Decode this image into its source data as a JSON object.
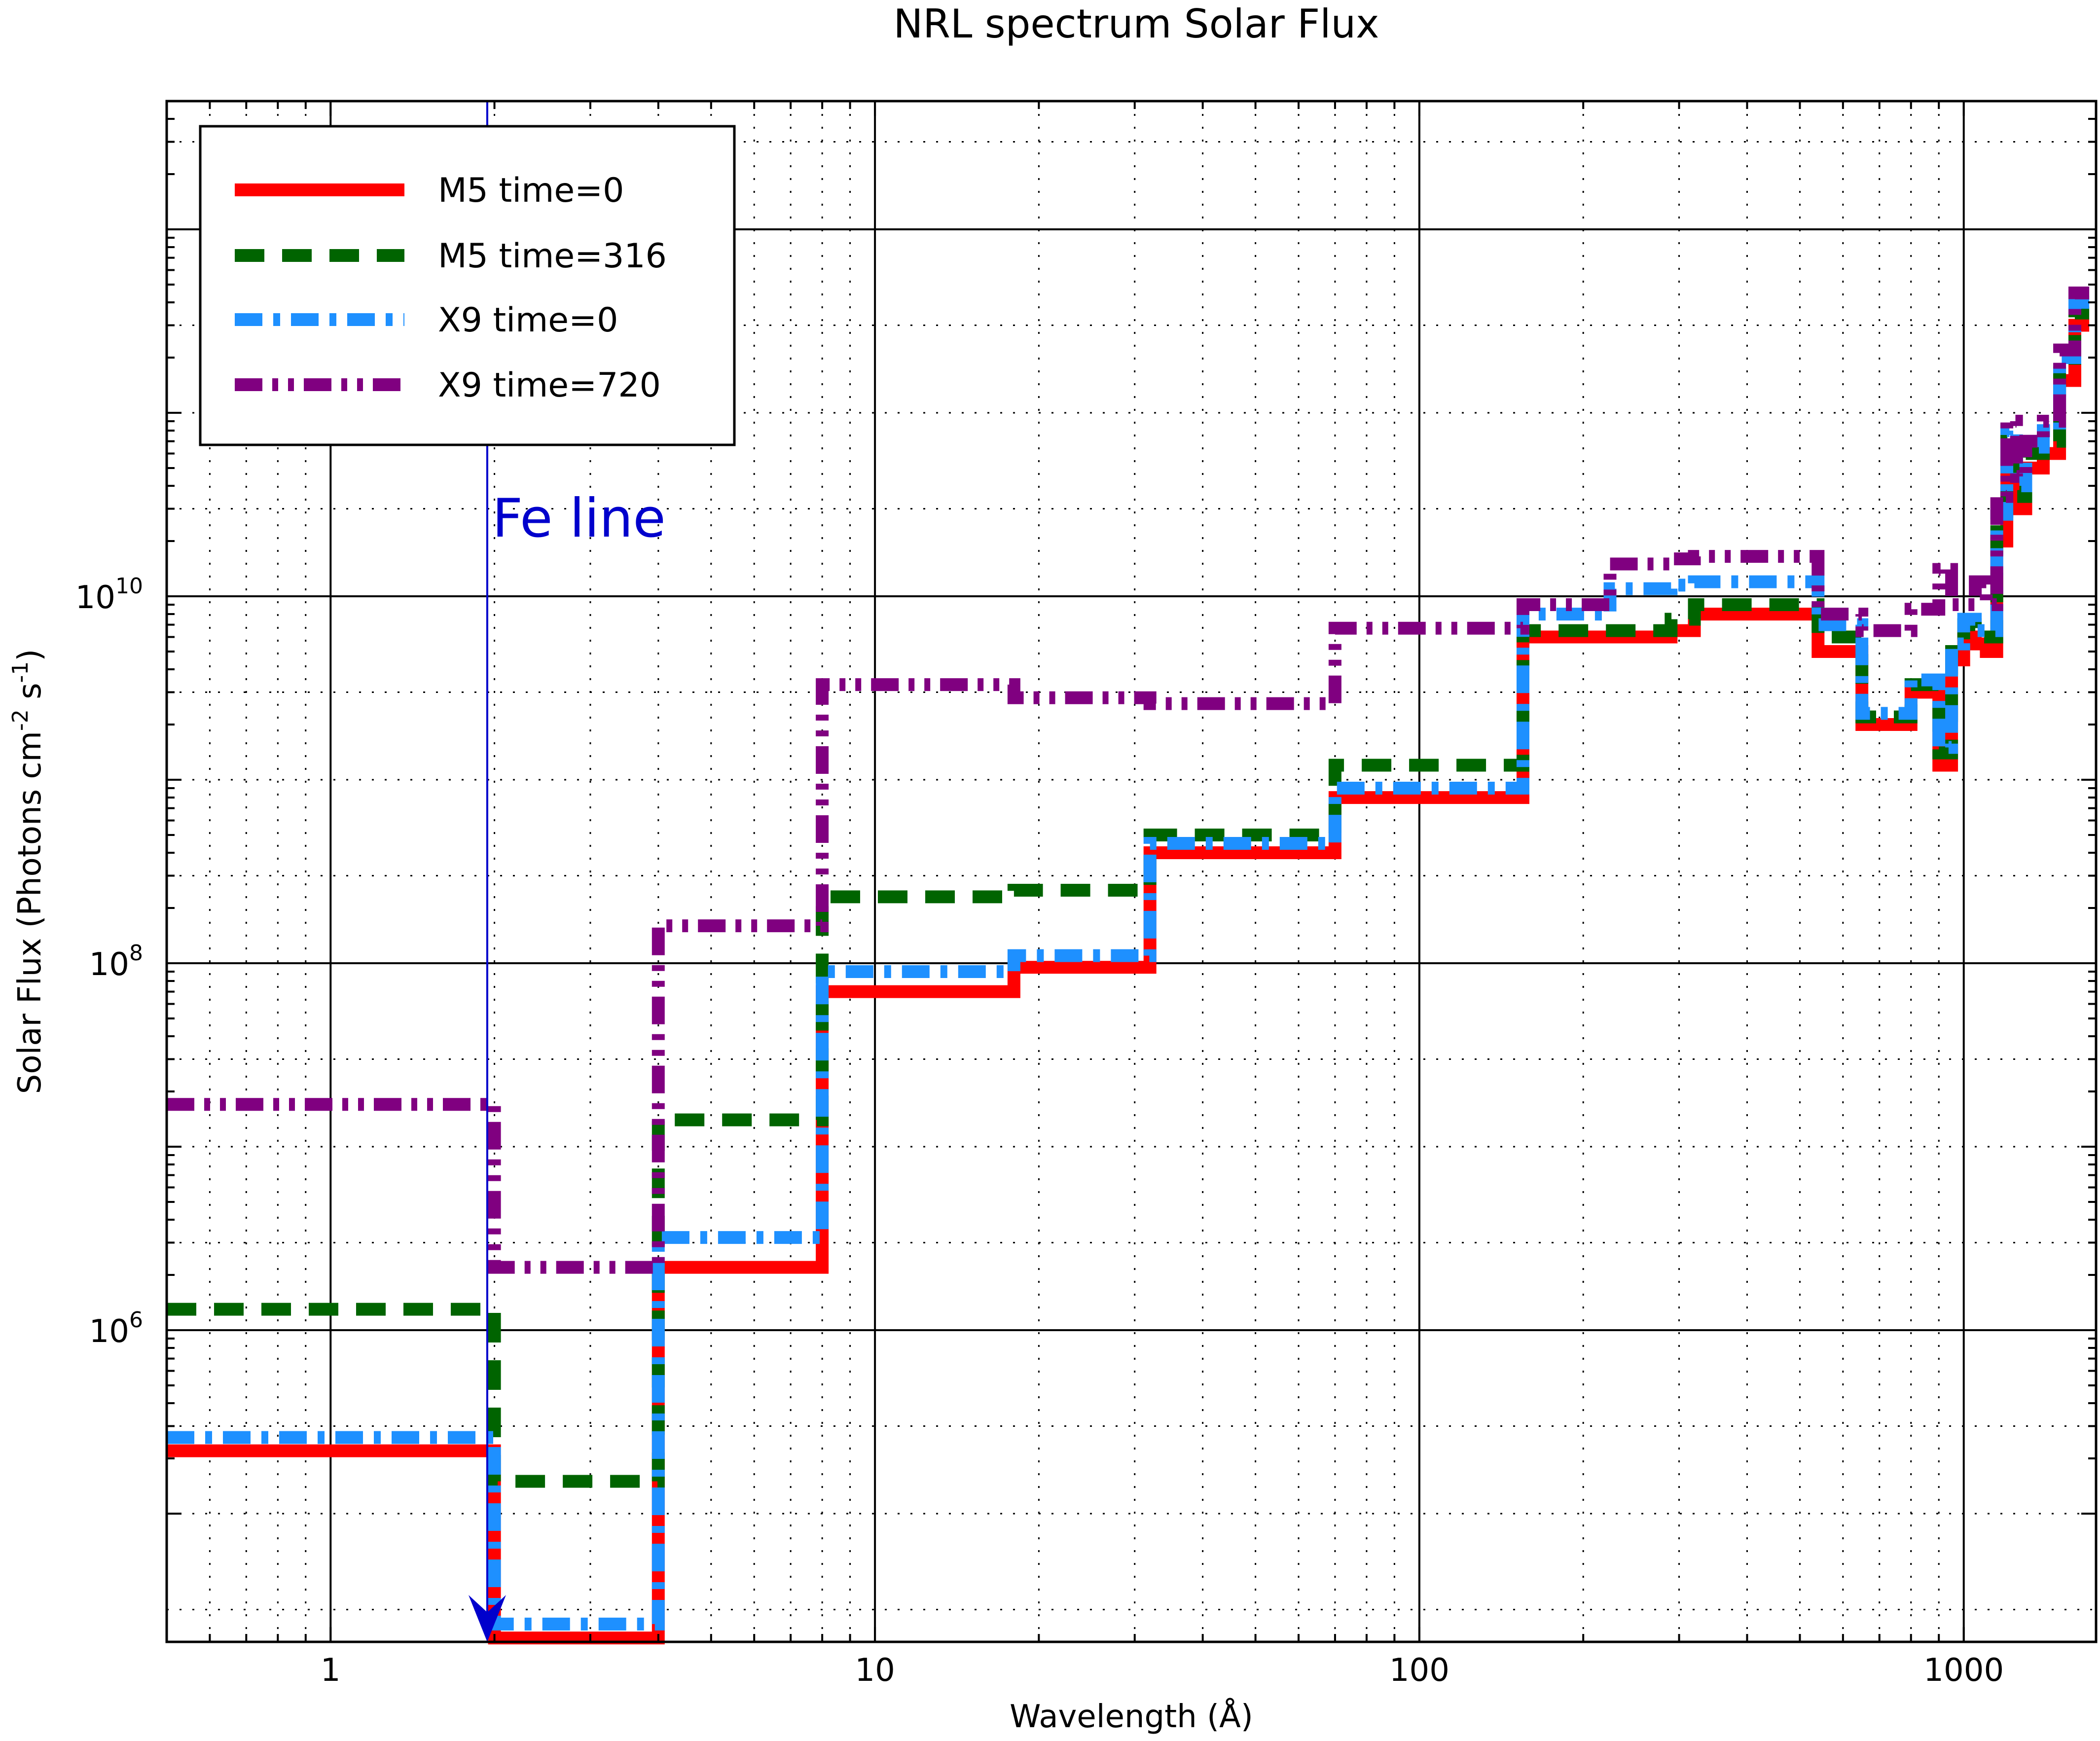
{
  "chart_data": {
    "type": "line",
    "title": "NRL spectrum Solar Flux",
    "xlabel": "Wavelength (Å)",
    "ylabel": "Solar Flux (Photons cm",
    "ylabel_sup1": "-2",
    "ylabel_mid": " s",
    "ylabel_sup2": "-1",
    "ylabel_end": ")",
    "x_scale": "log",
    "y_scale": "log",
    "xlim": [
      0.5,
      1750
    ],
    "ylim": [
      20000,
      5000000000000
    ],
    "x_ticks": [
      {
        "value": 1,
        "label": "1"
      },
      {
        "value": 10,
        "label": "10"
      },
      {
        "value": 100,
        "label": "100"
      },
      {
        "value": 1000,
        "label": "1000"
      }
    ],
    "y_ticks": [
      {
        "value": 1000000,
        "base": "10",
        "exp": "6"
      },
      {
        "value": 100000000,
        "base": "10",
        "exp": "8"
      },
      {
        "value": 10000000000,
        "base": "10",
        "exp": "10"
      }
    ],
    "grid": true,
    "legend_position": "top-left",
    "annotations": [
      {
        "text": "Fe line",
        "x": 1.94,
        "color": "#0000cc"
      }
    ],
    "series": [
      {
        "name": "M5 time=0",
        "color": "#ff0000",
        "style": "solid",
        "edges": [
          0.5,
          2,
          4,
          8,
          18,
          32,
          70,
          155,
          224,
          290,
          320,
          540,
          650,
          800,
          900,
          950,
          1000,
          1050,
          1100,
          1150,
          1200,
          1250,
          1300,
          1400,
          1500,
          1600,
          1700
        ],
        "values": [
          220000,
          21000,
          2200000,
          70000000,
          95000000,
          400000000,
          800000000,
          6000000000,
          6000000000,
          6500000000,
          8000000000,
          5000000000,
          2000000000,
          3000000000,
          1200000000,
          4500000000,
          6000000000,
          5500000000,
          5000000000,
          20000000000,
          60000000000,
          30000000000,
          50000000000,
          60000000000,
          150000000000,
          300000000000
        ]
      },
      {
        "name": "M5 time=316",
        "color": "#006400",
        "style": "dashed",
        "edges": [
          0.5,
          2,
          4,
          8,
          18,
          32,
          70,
          155,
          224,
          290,
          320,
          540,
          650,
          800,
          900,
          950,
          1000,
          1050,
          1100,
          1150,
          1200,
          1250,
          1300,
          1400,
          1500,
          1600,
          1700
        ],
        "values": [
          1300000,
          150000,
          14000000,
          230000000,
          250000000,
          500000000,
          1200000000,
          6500000000,
          6500000000,
          7500000000,
          9000000000,
          6000000000,
          2200000000,
          3300000000,
          1400000000,
          5000000000,
          7000000000,
          6000000000,
          6000000000,
          25000000000,
          70000000000,
          35000000000,
          60000000000,
          70000000000,
          180000000000,
          350000000000
        ]
      },
      {
        "name": "X9 time=0",
        "color": "#1e90ff",
        "style": "dashdot",
        "edges": [
          0.5,
          2,
          4,
          8,
          18,
          32,
          70,
          155,
          224,
          290,
          320,
          540,
          650,
          800,
          900,
          950,
          1000,
          1050,
          1100,
          1150,
          1200,
          1250,
          1300,
          1400,
          1500,
          1600,
          1700
        ],
        "values": [
          260000,
          25000,
          3200000,
          90000000,
          110000000,
          450000000,
          900000000,
          8000000000,
          11000000000,
          11500000000,
          12000000000,
          7000000000,
          2300000000,
          3500000000,
          1500000000,
          5500000000,
          7500000000,
          6500000000,
          6500000000,
          28000000000,
          80000000000,
          40000000000,
          65000000000,
          80000000000,
          200000000000,
          400000000000
        ]
      },
      {
        "name": "X9 time=720",
        "color": "#800080",
        "style": "dashdotdot",
        "edges": [
          0.5,
          2,
          4,
          8,
          18,
          32,
          70,
          155,
          224,
          290,
          320,
          540,
          650,
          800,
          900,
          950,
          1000,
          1050,
          1100,
          1150,
          1200,
          1250,
          1300,
          1400,
          1500,
          1600,
          1700
        ],
        "values": [
          17000000,
          2200000,
          160000000,
          3300000000,
          2800000000,
          2600000000,
          6700000000,
          9000000000,
          15000000000,
          16000000000,
          16500000000,
          8000000000,
          6500000000,
          8500000000,
          14000000000,
          9000000000,
          9000000000,
          12000000000,
          9000000000,
          35000000000,
          90000000000,
          45000000000,
          70000000000,
          90000000000,
          220000000000,
          450000000000
        ]
      }
    ]
  }
}
